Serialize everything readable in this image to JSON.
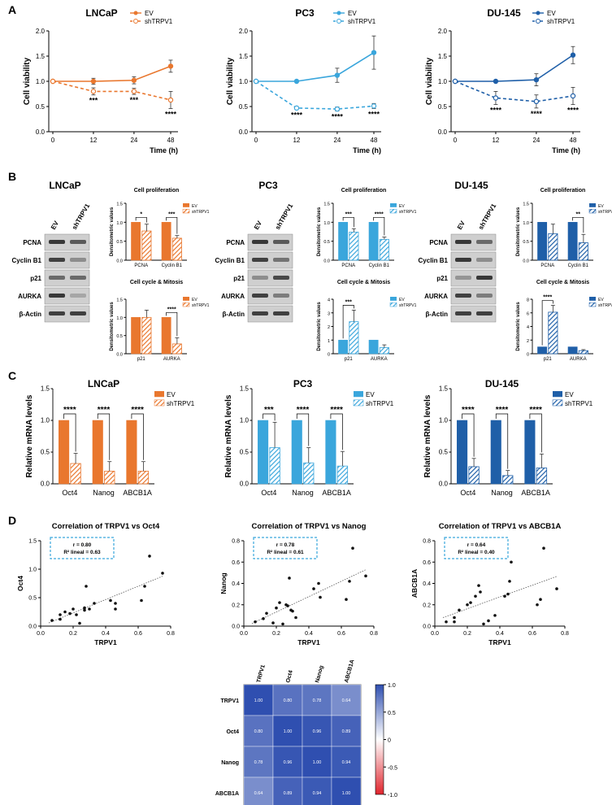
{
  "panels": {
    "A": "A",
    "B": "B",
    "C": "C",
    "D": "D"
  },
  "colors": {
    "lncap": "#e9772e",
    "pc3": "#3aa6dc",
    "du145": "#1f5fa8",
    "grid": "#000000",
    "heatPos": "#2f4fb0",
    "heatNeg": "#e0242c"
  },
  "time_axis": {
    "xlabel": "Time (h)",
    "ylabel": "Cell viability",
    "ticks": [
      "0",
      "12",
      "24",
      "48"
    ],
    "yticks": [
      "0.0",
      "0.5",
      "1.0",
      "1.5",
      "2.0"
    ]
  },
  "legend": {
    "ev": "EV",
    "sh": "shTRPV1"
  },
  "chart_data": [
    {
      "type": "line",
      "id": "A-lncap",
      "title": "LNCaP",
      "xlabel": "Time (h)",
      "ylabel": "Cell viability",
      "x": [
        0,
        12,
        24,
        48
      ],
      "ylim": [
        0,
        2
      ],
      "series": [
        {
          "name": "EV",
          "values": [
            1.0,
            1.0,
            1.02,
            1.3
          ],
          "err": [
            0.02,
            0.06,
            0.07,
            0.12
          ]
        },
        {
          "name": "shTRPV1",
          "values": [
            1.0,
            0.8,
            0.8,
            0.63
          ],
          "err": [
            0.02,
            0.07,
            0.06,
            0.17
          ]
        }
      ],
      "annotations": [
        "***",
        "***",
        "****"
      ]
    },
    {
      "type": "line",
      "id": "A-pc3",
      "title": "PC3",
      "xlabel": "Time (h)",
      "ylabel": "Cell viability",
      "x": [
        0,
        12,
        24,
        48
      ],
      "ylim": [
        0,
        2
      ],
      "series": [
        {
          "name": "EV",
          "values": [
            1.0,
            1.0,
            1.12,
            1.57
          ],
          "err": [
            0.02,
            0.02,
            0.14,
            0.33
          ]
        },
        {
          "name": "shTRPV1",
          "values": [
            1.0,
            0.47,
            0.45,
            0.51
          ],
          "err": [
            0.02,
            0.03,
            0.04,
            0.05
          ]
        }
      ],
      "annotations": [
        "****",
        "****",
        "****"
      ]
    },
    {
      "type": "line",
      "id": "A-du145",
      "title": "DU-145",
      "xlabel": "Time (h)",
      "ylabel": "Cell viability",
      "x": [
        0,
        12,
        24,
        48
      ],
      "ylim": [
        0,
        2
      ],
      "series": [
        {
          "name": "EV",
          "values": [
            1.0,
            1.0,
            1.03,
            1.52
          ],
          "err": [
            0.02,
            0.02,
            0.12,
            0.17
          ]
        },
        {
          "name": "shTRPV1",
          "values": [
            1.0,
            0.67,
            0.6,
            0.71
          ],
          "err": [
            0.02,
            0.13,
            0.13,
            0.17
          ]
        }
      ],
      "annotations": [
        "****",
        "****",
        "****"
      ]
    },
    {
      "type": "bar",
      "id": "B-lncap-prolif",
      "title": "Cell proliferation",
      "ylabel": "Densitometric values",
      "categories": [
        "PCNA",
        "Cyclin B1"
      ],
      "ylim": [
        0,
        1.5
      ],
      "yticks": [
        "0.0",
        "0.5",
        "1.0",
        "1.5"
      ],
      "series": [
        {
          "name": "EV",
          "values": [
            1.0,
            1.0
          ],
          "err": [
            0,
            0
          ]
        },
        {
          "name": "shTRPV1",
          "values": [
            0.77,
            0.58
          ],
          "err": [
            0.18,
            0.07
          ]
        }
      ],
      "annotations": [
        "*",
        "***"
      ]
    },
    {
      "type": "bar",
      "id": "B-lncap-cycle",
      "title": "Cell cycle & Mitosis",
      "ylabel": "Densitometric values",
      "categories": [
        "p21",
        "AURKA"
      ],
      "ylim": [
        0,
        1.5
      ],
      "yticks": [
        "0.0",
        "0.5",
        "1.0",
        "1.5"
      ],
      "series": [
        {
          "name": "EV",
          "values": [
            1.0,
            1.0
          ],
          "err": [
            0,
            0
          ]
        },
        {
          "name": "shTRPV1",
          "values": [
            1.0,
            0.27
          ],
          "err": [
            0.2,
            0.17
          ]
        }
      ],
      "annotations": [
        "",
        "****"
      ]
    },
    {
      "type": "bar",
      "id": "B-pc3-prolif",
      "title": "Cell proliferation",
      "ylabel": "Densitometric values",
      "categories": [
        "PCNA",
        "Cyclin B1"
      ],
      "ylim": [
        0,
        1.5
      ],
      "yticks": [
        "0.0",
        "0.5",
        "1.0",
        "1.5"
      ],
      "series": [
        {
          "name": "EV",
          "values": [
            1.0,
            1.0
          ],
          "err": [
            0,
            0
          ]
        },
        {
          "name": "shTRPV1",
          "values": [
            0.74,
            0.55
          ],
          "err": [
            0.09,
            0.06
          ]
        }
      ],
      "annotations": [
        "***",
        "****"
      ]
    },
    {
      "type": "bar",
      "id": "B-pc3-cycle",
      "title": "Cell cycle & Mitosis",
      "ylabel": "Densitometric values",
      "categories": [
        "p21",
        "AURKA"
      ],
      "ylim": [
        0,
        4
      ],
      "yticks": [
        "0",
        "1",
        "2",
        "3",
        "4"
      ],
      "series": [
        {
          "name": "EV",
          "values": [
            1.0,
            1.0
          ],
          "err": [
            0,
            0
          ]
        },
        {
          "name": "shTRPV1",
          "values": [
            2.35,
            0.45
          ],
          "err": [
            0.85,
            0.2
          ]
        }
      ],
      "annotations": [
        "***",
        ""
      ]
    },
    {
      "type": "bar",
      "id": "B-du145-prolif",
      "title": "Cell proliferation",
      "ylabel": "Densitometric values",
      "categories": [
        "PCNA",
        "Cyclin B1"
      ],
      "ylim": [
        0,
        1.5
      ],
      "yticks": [
        "0.0",
        "0.5",
        "1.0",
        "1.5"
      ],
      "series": [
        {
          "name": "EV",
          "values": [
            1.0,
            1.0
          ],
          "err": [
            0,
            0
          ]
        },
        {
          "name": "shTRPV1",
          "values": [
            0.7,
            0.46
          ],
          "err": [
            0.25,
            0.22
          ]
        }
      ],
      "annotations": [
        "",
        "**"
      ]
    },
    {
      "type": "bar",
      "id": "B-du145-cycle",
      "title": "Cell cycle & Mitosis",
      "ylabel": "Densitometric values",
      "categories": [
        "p21",
        "AURKA"
      ],
      "ylim": [
        0,
        8
      ],
      "yticks": [
        "0",
        "2",
        "4",
        "6",
        "8"
      ],
      "series": [
        {
          "name": "EV",
          "values": [
            1.0,
            1.0
          ],
          "err": [
            0,
            0
          ]
        },
        {
          "name": "shTRPV1",
          "values": [
            6.1,
            0.45
          ],
          "err": [
            1.0,
            0.15
          ]
        }
      ],
      "annotations": [
        "****",
        ""
      ]
    },
    {
      "type": "bar",
      "id": "C-lncap",
      "title": "LNCaP",
      "ylabel": "Relative mRNA levels",
      "categories": [
        "Oct4",
        "Nanog",
        "ABCB1A"
      ],
      "ylim": [
        0,
        1.5
      ],
      "yticks": [
        "0.0",
        "0.5",
        "1.0",
        "1.5"
      ],
      "series": [
        {
          "name": "EV",
          "values": [
            1.0,
            1.0,
            1.0
          ],
          "err": [
            0,
            0,
            0
          ]
        },
        {
          "name": "shTRPV1",
          "values": [
            0.32,
            0.2,
            0.2
          ],
          "err": [
            0.16,
            0.15,
            0.15
          ]
        }
      ],
      "annotations": [
        "****",
        "****",
        "****"
      ]
    },
    {
      "type": "bar",
      "id": "C-pc3",
      "title": "PC3",
      "ylabel": "Relative mRNA levels",
      "categories": [
        "Oct4",
        "Nanog",
        "ABCB1A"
      ],
      "ylim": [
        0,
        1.5
      ],
      "yticks": [
        "0.0",
        "0.5",
        "1.0",
        "1.5"
      ],
      "series": [
        {
          "name": "EV",
          "values": [
            1.0,
            1.0,
            1.0
          ],
          "err": [
            0,
            0,
            0
          ]
        },
        {
          "name": "shTRPV1",
          "values": [
            0.57,
            0.33,
            0.28
          ],
          "err": [
            0.4,
            0.24,
            0.23
          ]
        }
      ],
      "annotations": [
        "***",
        "****",
        "****"
      ]
    },
    {
      "type": "bar",
      "id": "C-du145",
      "title": "DU-145",
      "ylabel": "Relative mRNA levels",
      "categories": [
        "Oct4",
        "Nanog",
        "ABCB1A"
      ],
      "ylim": [
        0,
        1.5
      ],
      "yticks": [
        "0.0",
        "0.5",
        "1.0",
        "1.5"
      ],
      "series": [
        {
          "name": "EV",
          "values": [
            1.0,
            1.0,
            1.0
          ],
          "err": [
            0,
            0,
            0
          ]
        },
        {
          "name": "shTRPV1",
          "values": [
            0.27,
            0.13,
            0.25
          ],
          "err": [
            0.13,
            0.08,
            0.22
          ]
        }
      ],
      "annotations": [
        "****",
        "****",
        "****"
      ]
    },
    {
      "type": "scatter",
      "id": "D-oct4",
      "title": "Correlation of TRPV1 vs Oct4",
      "xlabel": "TRPV1",
      "ylabel": "Oct4",
      "xlim": [
        0,
        0.8
      ],
      "ylim": [
        0,
        1.5
      ],
      "xticks": [
        "0.0",
        "0.2",
        "0.4",
        "0.6",
        "0.8"
      ],
      "yticks": [
        "0.0",
        "0.5",
        "1.0",
        "1.5"
      ],
      "stats": [
        "r = 0.80",
        "R² lineal = 0.63"
      ],
      "x": [
        0.07,
        0.12,
        0.12,
        0.15,
        0.18,
        0.2,
        0.22,
        0.24,
        0.27,
        0.27,
        0.28,
        0.3,
        0.33,
        0.43,
        0.46,
        0.46,
        0.62,
        0.64,
        0.67,
        0.75
      ],
      "y": [
        0.1,
        0.2,
        0.12,
        0.25,
        0.22,
        0.3,
        0.2,
        0.05,
        0.28,
        0.32,
        0.7,
        0.3,
        0.4,
        0.45,
        0.4,
        0.3,
        0.45,
        0.7,
        1.23,
        0.93
      ]
    },
    {
      "type": "scatter",
      "id": "D-nanog",
      "title": "Correlation of TRPV1 vs Nanog",
      "xlabel": "TRPV1",
      "ylabel": "Nanog",
      "xlim": [
        0,
        0.8
      ],
      "ylim": [
        0,
        0.8
      ],
      "xticks": [
        "0.0",
        "0.2",
        "0.4",
        "0.6",
        "0.8"
      ],
      "yticks": [
        "0.0",
        "0.2",
        "0.4",
        "0.6",
        "0.8"
      ],
      "stats": [
        "r = 0.78",
        "R² lineal = 0.61"
      ],
      "x": [
        0.07,
        0.12,
        0.14,
        0.18,
        0.2,
        0.22,
        0.24,
        0.26,
        0.27,
        0.28,
        0.29,
        0.3,
        0.32,
        0.43,
        0.46,
        0.47,
        0.63,
        0.65,
        0.67,
        0.75
      ],
      "y": [
        0.04,
        0.07,
        0.12,
        0.03,
        0.17,
        0.22,
        0.02,
        0.2,
        0.19,
        0.45,
        0.15,
        0.14,
        0.08,
        0.35,
        0.4,
        0.27,
        0.25,
        0.42,
        0.73,
        0.47
      ]
    },
    {
      "type": "scatter",
      "id": "D-abcb1a",
      "title": "Correlation of TRPV1 vs ABCB1A",
      "xlabel": "TRPV1",
      "ylabel": "ABCB1A",
      "xlim": [
        0,
        0.8
      ],
      "ylim": [
        0,
        0.8
      ],
      "xticks": [
        "0.0",
        "0.2",
        "0.4",
        "0.6",
        "0.8"
      ],
      "yticks": [
        "0.0",
        "0.2",
        "0.4",
        "0.6",
        "0.8"
      ],
      "stats": [
        "r = 0.64",
        "R² lineal = 0.40"
      ],
      "x": [
        0.07,
        0.12,
        0.12,
        0.15,
        0.2,
        0.22,
        0.25,
        0.27,
        0.28,
        0.3,
        0.33,
        0.37,
        0.43,
        0.45,
        0.46,
        0.47,
        0.63,
        0.65,
        0.67,
        0.75
      ],
      "y": [
        0.04,
        0.08,
        0.04,
        0.15,
        0.2,
        0.22,
        0.28,
        0.38,
        0.32,
        0.02,
        0.05,
        0.1,
        0.28,
        0.3,
        0.42,
        0.6,
        0.2,
        0.25,
        0.73,
        0.35
      ]
    },
    {
      "type": "heatmap",
      "id": "D-heatmap",
      "labels": [
        "TRPV1",
        "Oct4",
        "Nanog",
        "ABCB1A"
      ],
      "scale_ticks": [
        "1.0",
        "0.5",
        "0",
        "-0.5",
        "-1.0"
      ],
      "vmin": -1,
      "vmax": 1,
      "matrix": [
        [
          1.0,
          0.8,
          0.78,
          0.64
        ],
        [
          0.8,
          1.0,
          0.96,
          0.89
        ],
        [
          0.78,
          0.96,
          1.0,
          0.94
        ],
        [
          0.64,
          0.89,
          0.94,
          1.0
        ]
      ],
      "cells": [
        [
          "1.00",
          "0.80",
          "0.78",
          "0.64"
        ],
        [
          "0.80",
          "1.00",
          "0.96",
          "0.89"
        ],
        [
          "0.78",
          "0.96",
          "1.00",
          "0.94"
        ],
        [
          "0.64",
          "0.89",
          "0.94",
          "1.00"
        ]
      ]
    }
  ],
  "blots": [
    {
      "id": "lncap",
      "title": "LNCaP",
      "lanes": [
        "EV",
        "shTRPV1"
      ],
      "rows": [
        "PCNA",
        "Cyclin B1",
        "p21",
        "AURKA",
        "β-Actin"
      ],
      "intensity": [
        [
          0.85,
          0.65
        ],
        [
          0.8,
          0.35
        ],
        [
          0.55,
          0.55
        ],
        [
          0.85,
          0.2
        ],
        [
          0.8,
          0.8
        ]
      ]
    },
    {
      "id": "pc3",
      "title": "PC3",
      "lanes": [
        "EV",
        "shTRPV1"
      ],
      "rows": [
        "PCNA",
        "Cyclin B1",
        "p21",
        "AURKA",
        "β-Actin"
      ],
      "intensity": [
        [
          0.85,
          0.65
        ],
        [
          0.8,
          0.5
        ],
        [
          0.35,
          0.75
        ],
        [
          0.8,
          0.45
        ],
        [
          0.8,
          0.8
        ]
      ]
    },
    {
      "id": "du145",
      "title": "DU-145",
      "lanes": [
        "EV",
        "shTRPV1"
      ],
      "rows": [
        "PCNA",
        "Cyclin B1",
        "p21",
        "AURKA",
        "β-Actin"
      ],
      "intensity": [
        [
          0.85,
          0.55
        ],
        [
          0.85,
          0.35
        ],
        [
          0.3,
          0.85
        ],
        [
          0.8,
          0.45
        ],
        [
          0.8,
          0.8
        ]
      ]
    }
  ]
}
